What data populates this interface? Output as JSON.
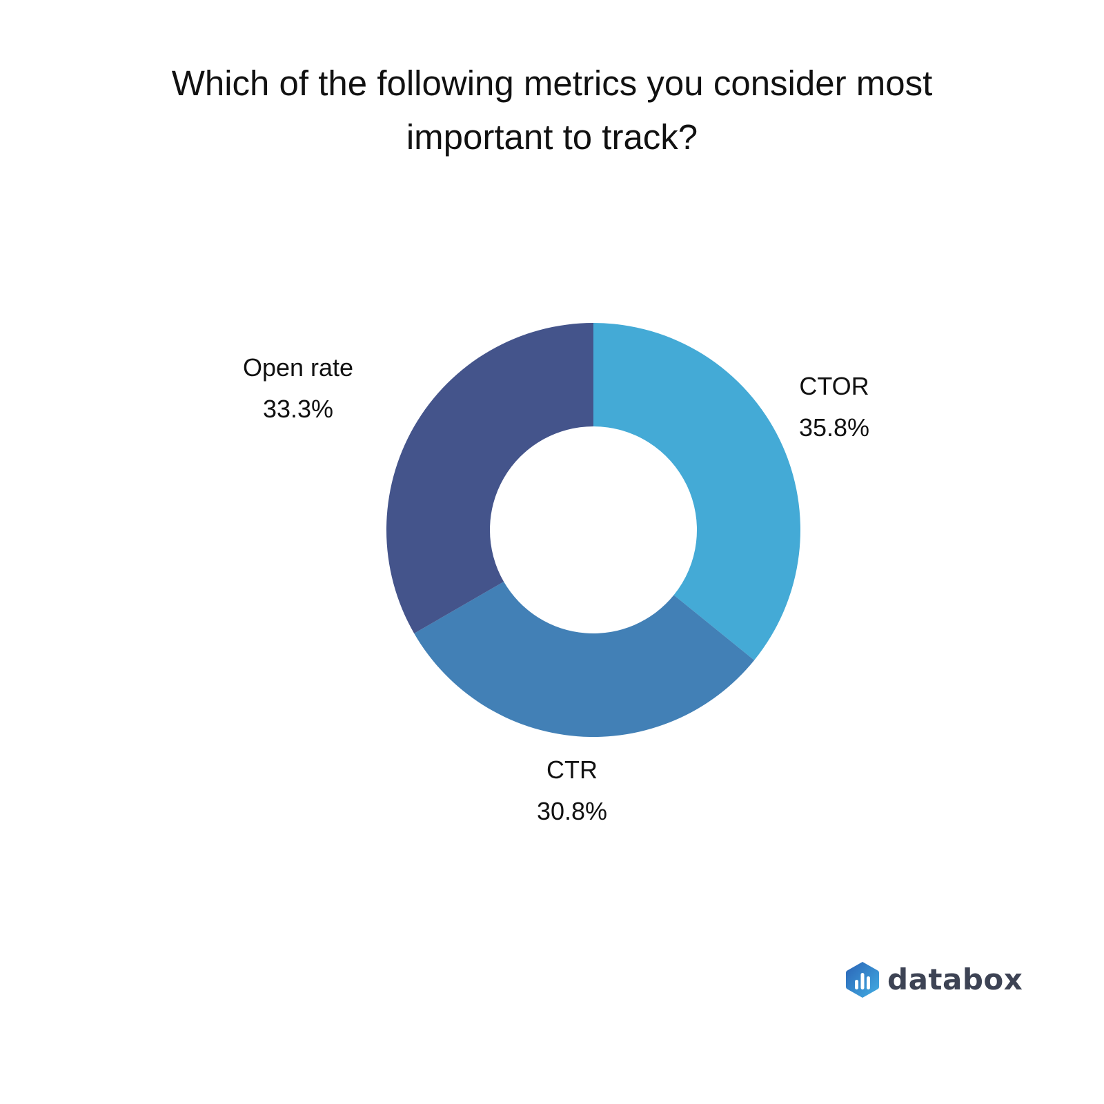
{
  "chart_data": {
    "type": "pie",
    "donut": true,
    "title": "Which of the following metrics you consider most important to track?",
    "slices": [
      {
        "label": "CTOR",
        "value": 35.8,
        "value_label": "35.8%",
        "color": "#44aad6"
      },
      {
        "label": "CTR",
        "value": 30.8,
        "value_label": "30.8%",
        "color": "#4280b6"
      },
      {
        "label": "Open rate",
        "value": 33.3,
        "value_label": "33.3%",
        "color": "#44548b"
      }
    ]
  },
  "brand": {
    "name": "databox",
    "icon": "databox-logo-icon",
    "colors": [
      "#2a6ab8",
      "#42a8e0"
    ]
  }
}
